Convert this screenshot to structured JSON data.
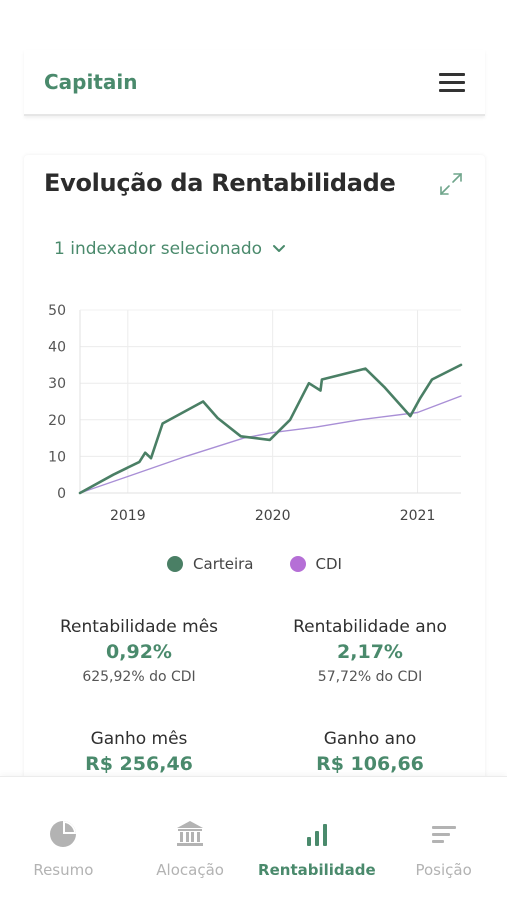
{
  "header": {
    "brand": "Capitain"
  },
  "card": {
    "title": "Evolução da Rentabilidade",
    "indexer_label": "1 indexador selecionado"
  },
  "chart_data": {
    "type": "line",
    "x_ticks": [
      "2019",
      "2020",
      "2021"
    ],
    "y_ticks": [
      0,
      10,
      20,
      30,
      40,
      50
    ],
    "ylim": [
      0,
      50
    ],
    "xlim": [
      2018.67,
      2021.3
    ],
    "grid": true,
    "legend_position": "bottom",
    "series": [
      {
        "name": "Carteira",
        "color": "#4a7f65",
        "x": [
          2018.67,
          2018.9,
          2019.08,
          2019.12,
          2019.16,
          2019.24,
          2019.52,
          2019.62,
          2019.78,
          2019.98,
          2020.12,
          2020.25,
          2020.33,
          2020.34,
          2020.64,
          2020.77,
          2020.95,
          2021.02,
          2021.1,
          2021.3
        ],
        "values": [
          0,
          5,
          8.5,
          11,
          9.5,
          19,
          25,
          20.5,
          15.5,
          14.5,
          20,
          30,
          28,
          31,
          34,
          29,
          21,
          26,
          31,
          35
        ]
      },
      {
        "name": "CDI",
        "color": "#a98fd6",
        "x": [
          2018.67,
          2019.0,
          2019.4,
          2019.8,
          2020.0,
          2020.3,
          2020.6,
          2021.0,
          2021.3
        ],
        "values": [
          0,
          4.5,
          10,
          15,
          16.5,
          18,
          20,
          22,
          26.5
        ]
      }
    ]
  },
  "legend": [
    {
      "label": "Carteira",
      "color": "#4a7f65"
    },
    {
      "label": "CDI",
      "color": "#b56fd6"
    }
  ],
  "stats": {
    "rent_mes": {
      "label": "Rentabilidade mês",
      "value": "0,92%",
      "sub": "625,92% do CDI"
    },
    "rent_ano": {
      "label": "Rentabilidade ano",
      "value": "2,17%",
      "sub": "57,72% do CDI"
    },
    "ganho_mes": {
      "label": "Ganho mês",
      "value": "R$ 256,46"
    },
    "ganho_ano": {
      "label": "Ganho ano",
      "value": "R$ 106,66"
    }
  },
  "nav": {
    "items": [
      {
        "label": "Resumo",
        "icon": "pie-chart-icon",
        "active": false
      },
      {
        "label": "Alocação",
        "icon": "bank-icon",
        "active": false
      },
      {
        "label": "Rentabilidade",
        "icon": "bar-chart-icon",
        "active": true
      },
      {
        "label": "Posição",
        "icon": "list-icon",
        "active": false
      }
    ]
  },
  "colors": {
    "accent": "#4a8a6c",
    "inactive": "#b3b3b3"
  }
}
